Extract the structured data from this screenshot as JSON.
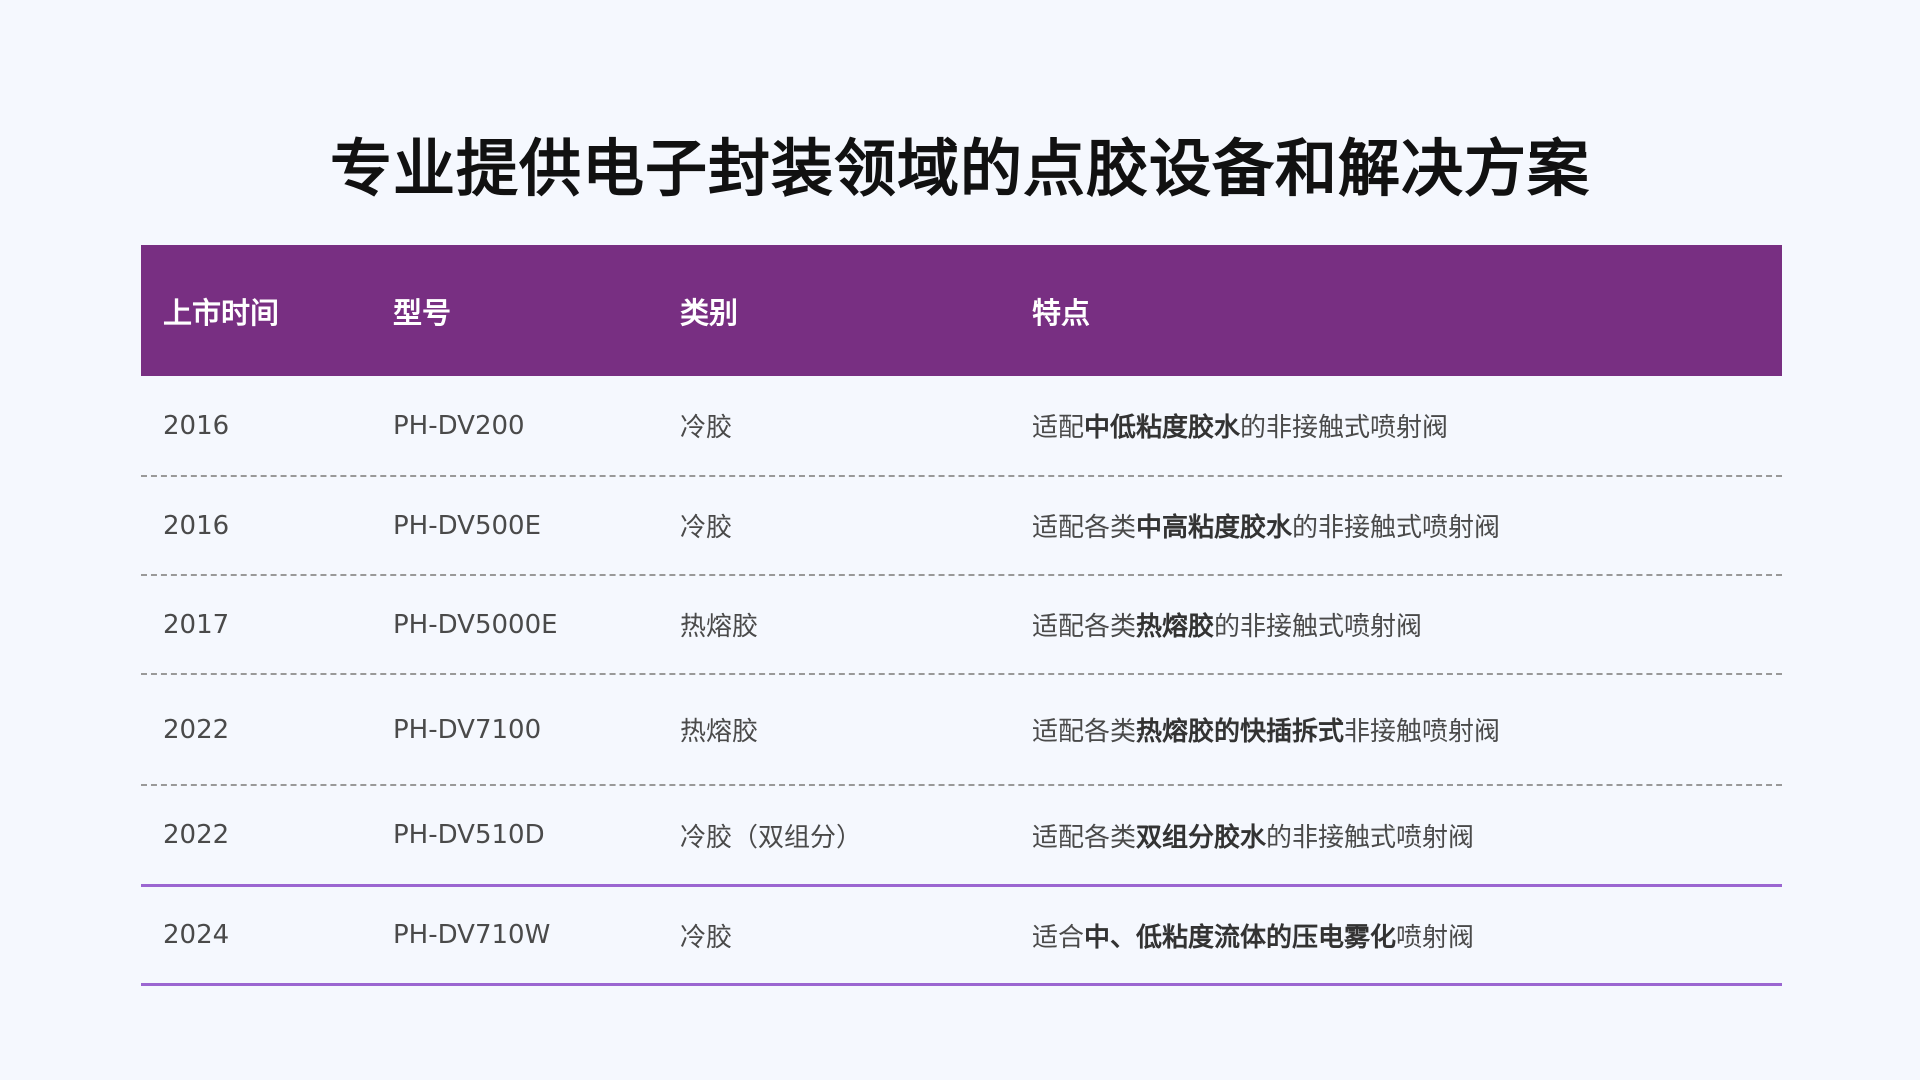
{
  "title": "专业提供电子封装领域的点胶设备和解决方案",
  "colors": {
    "header_bg": "#782f82",
    "accent_line": "#9b66d1",
    "background": "#f5f8fe"
  },
  "table": {
    "headers": [
      "上市时间",
      "型号",
      "类别",
      "特点"
    ],
    "rows": [
      {
        "year": "2016",
        "model": "PH-DV200",
        "category": "冷胶",
        "feature": [
          {
            "t": "适配",
            "b": false
          },
          {
            "t": "中低粘度胶水",
            "b": true
          },
          {
            "t": "的非接触式喷射阀",
            "b": false
          }
        ]
      },
      {
        "year": "2016",
        "model": "PH-DV500E",
        "category": "冷胶",
        "feature": [
          {
            "t": "适配各类",
            "b": false
          },
          {
            "t": "中高粘度胶水",
            "b": true
          },
          {
            "t": "的非接触式喷射阀",
            "b": false
          }
        ]
      },
      {
        "year": "2017",
        "model": "PH-DV5000E",
        "category": "热熔胶",
        "feature": [
          {
            "t": "适配各类",
            "b": false
          },
          {
            "t": "热熔胶",
            "b": true
          },
          {
            "t": "的非接触式喷射阀",
            "b": false
          }
        ]
      },
      {
        "year": "2022",
        "model": "PH-DV7100",
        "category": "热熔胶",
        "feature": [
          {
            "t": "适配各类",
            "b": false
          },
          {
            "t": "热熔胶的快插拆式",
            "b": true
          },
          {
            "t": "非接触喷射阀",
            "b": false
          }
        ]
      },
      {
        "year": "2022",
        "model": "PH-DV510D",
        "category": "冷胶（双组分）",
        "feature": [
          {
            "t": "适配各类",
            "b": false
          },
          {
            "t": "双组分胶水",
            "b": true
          },
          {
            "t": "的非接触式喷射阀",
            "b": false
          }
        ]
      },
      {
        "year": "2024",
        "model": "PH-DV710W",
        "category": "冷胶",
        "feature": [
          {
            "t": "适合",
            "b": false
          },
          {
            "t": "中、低粘度流体的压电雾化",
            "b": true
          },
          {
            "t": "喷射阀",
            "b": false
          }
        ]
      }
    ]
  }
}
